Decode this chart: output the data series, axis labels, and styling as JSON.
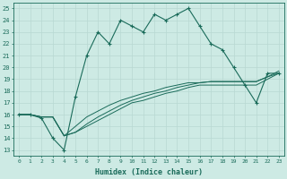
{
  "xlabel": "Humidex (Indice chaleur)",
  "bg_color": "#cdeae4",
  "grid_color": "#b8d8d2",
  "line_color": "#1a6b5a",
  "xlim": [
    -0.5,
    23.5
  ],
  "ylim": [
    12.5,
    25.5
  ],
  "xticks": [
    0,
    1,
    2,
    3,
    4,
    5,
    6,
    7,
    8,
    9,
    10,
    11,
    12,
    13,
    14,
    15,
    16,
    17,
    18,
    19,
    20,
    21,
    22,
    23
  ],
  "yticks": [
    13,
    14,
    15,
    16,
    17,
    18,
    19,
    20,
    21,
    22,
    23,
    24,
    25
  ],
  "series1_x": [
    0,
    1,
    2,
    3,
    4,
    5,
    6,
    7,
    8,
    9,
    10,
    11,
    12,
    13,
    14,
    15,
    16,
    17,
    18,
    19,
    20,
    21,
    22,
    23
  ],
  "series1_y": [
    16,
    16,
    15.7,
    14,
    13,
    17.5,
    21,
    23,
    22,
    24,
    23.5,
    23,
    24.5,
    24,
    24.5,
    25,
    23.5,
    22,
    21.5,
    20,
    18.5,
    17,
    19.5,
    19.5
  ],
  "series2_x": [
    0,
    1,
    2,
    3,
    4,
    5,
    6,
    7,
    8,
    9,
    10,
    11,
    12,
    13,
    14,
    15,
    16,
    17,
    18,
    19,
    20,
    21,
    22,
    23
  ],
  "series2_y": [
    16,
    16,
    15.8,
    15.8,
    14.2,
    14.5,
    15.0,
    15.5,
    16.0,
    16.5,
    17.0,
    17.2,
    17.5,
    17.8,
    18.0,
    18.3,
    18.5,
    18.5,
    18.5,
    18.5,
    18.5,
    18.5,
    19.0,
    19.5
  ],
  "series3_x": [
    0,
    1,
    2,
    3,
    4,
    5,
    6,
    7,
    8,
    9,
    10,
    11,
    12,
    13,
    14,
    15,
    16,
    17,
    18,
    19,
    20,
    21,
    22,
    23
  ],
  "series3_y": [
    16,
    16,
    15.8,
    15.8,
    14.2,
    14.5,
    15.2,
    15.8,
    16.3,
    16.8,
    17.2,
    17.5,
    17.8,
    18.0,
    18.3,
    18.5,
    18.7,
    18.8,
    18.8,
    18.8,
    18.8,
    18.8,
    19.2,
    19.7
  ],
  "series4_x": [
    0,
    1,
    2,
    3,
    4,
    5,
    6,
    7,
    8,
    9,
    10,
    11,
    12,
    13,
    14,
    15,
    16,
    17,
    18,
    19,
    20,
    21,
    22,
    23
  ],
  "series4_y": [
    16,
    16,
    15.8,
    15.8,
    14.2,
    15.0,
    15.8,
    16.3,
    16.8,
    17.2,
    17.5,
    17.8,
    18.0,
    18.3,
    18.5,
    18.7,
    18.7,
    18.8,
    18.8,
    18.8,
    18.8,
    18.8,
    19.2,
    19.5
  ]
}
